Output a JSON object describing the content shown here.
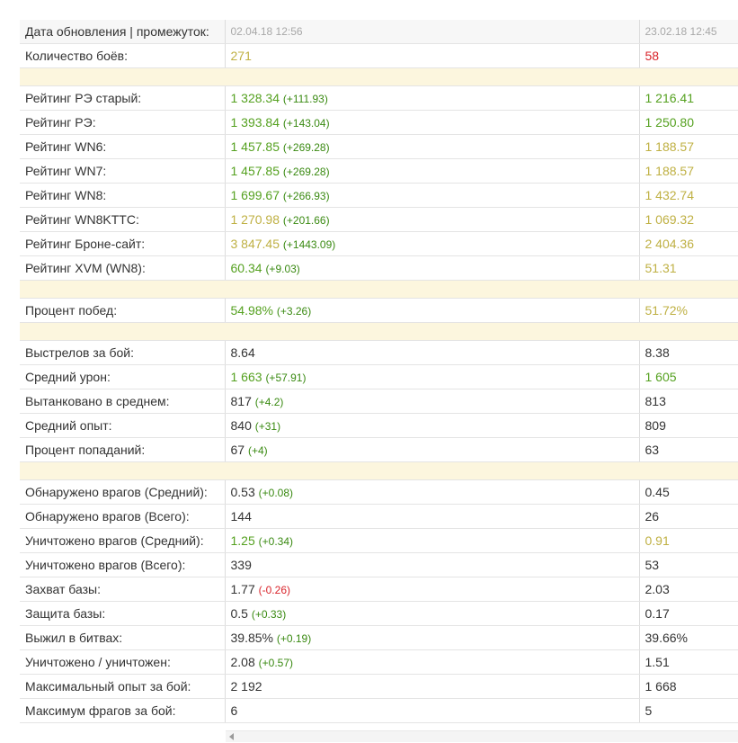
{
  "colors": {
    "green": "#55a120",
    "olive": "#bfb043",
    "red": "#d9242b",
    "separator": "#fcf6de"
  },
  "header": {
    "label": "Дата обновления | промежуток:",
    "current": "02.04.18 12:56",
    "previous": "23.02.18 12:45"
  },
  "battles": {
    "label": "Количество боёв:",
    "current": "271",
    "previous": "58"
  },
  "ratings": {
    "re_old": {
      "label": "Рейтинг РЭ старый:",
      "value": "1 328.34",
      "delta": "(+111.93)",
      "previous": "1 216.41"
    },
    "re": {
      "label": "Рейтинг РЭ:",
      "value": "1 393.84",
      "delta": "(+143.04)",
      "previous": "1 250.80"
    },
    "wn6": {
      "label": "Рейтинг WN6:",
      "value": "1 457.85",
      "delta": "(+269.28)",
      "previous": "1 188.57"
    },
    "wn7": {
      "label": "Рейтинг WN7:",
      "value": "1 457.85",
      "delta": "(+269.28)",
      "previous": "1 188.57"
    },
    "wn8": {
      "label": "Рейтинг WN8:",
      "value": "1 699.67",
      "delta": "(+266.93)",
      "previous": "1 432.74"
    },
    "wn8kttc": {
      "label": "Рейтинг WN8KTTC:",
      "value": "1 270.98",
      "delta": "(+201.66)",
      "previous": "1 069.32"
    },
    "brone": {
      "label": "Рейтинг Броне-сайт:",
      "value": "3 847.45",
      "delta": "(+1443.09)",
      "previous": "2 404.36"
    },
    "xvm": {
      "label": "Рейтинг XVM (WN8):",
      "value": "60.34",
      "delta": "(+9.03)",
      "previous": "51.31"
    }
  },
  "winrate": {
    "label": "Процент побед:",
    "value": "54.98%",
    "delta": "(+3.26)",
    "previous": "51.72%"
  },
  "combat": {
    "shots": {
      "label": "Выстрелов за бой:",
      "value": "8.64",
      "delta": "",
      "previous": "8.38"
    },
    "damage": {
      "label": "Средний урон:",
      "value": "1 663",
      "delta": "(+57.91)",
      "previous": "1 605"
    },
    "tanked": {
      "label": "Вытанковано в среднем:",
      "value": "817",
      "delta": "(+4.2)",
      "previous": "813"
    },
    "xp": {
      "label": "Средний опыт:",
      "value": "840",
      "delta": "(+31)",
      "previous": "809"
    },
    "hitrate": {
      "label": "Процент попаданий:",
      "value": "67",
      "delta": "(+4)",
      "previous": "63"
    }
  },
  "details": {
    "spotted_avg": {
      "label": "Обнаружено врагов (Средний):",
      "value": "0.53",
      "delta": "(+0.08)",
      "previous": "0.45"
    },
    "spotted_total": {
      "label": "Обнаружено врагов (Всего):",
      "value": "144",
      "delta": "",
      "previous": "26"
    },
    "killed_avg": {
      "label": "Уничтожено врагов (Средний):",
      "value": "1.25",
      "delta": "(+0.34)",
      "previous": "0.91"
    },
    "killed_total": {
      "label": "Уничтожено врагов (Всего):",
      "value": "339",
      "delta": "",
      "previous": "53"
    },
    "capture": {
      "label": "Захват базы:",
      "value": "1.77",
      "delta": "(-0.26)",
      "previous": "2.03"
    },
    "defense": {
      "label": "Защита базы:",
      "value": "0.5",
      "delta": "(+0.33)",
      "previous": "0.17"
    },
    "survived": {
      "label": "Выжил в битвах:",
      "value": "39.85%",
      "delta": "(+0.19)",
      "previous": "39.66%"
    },
    "kd": {
      "label": "Уничтожено / уничтожен:",
      "value": "2.08",
      "delta": "(+0.57)",
      "previous": "1.51"
    },
    "max_xp": {
      "label": "Максимальный опыт за бой:",
      "value": "2 192",
      "delta": "",
      "previous": "1 668"
    },
    "max_frags": {
      "label": "Максимум фрагов за бой:",
      "value": "6",
      "delta": "",
      "previous": "5"
    }
  }
}
